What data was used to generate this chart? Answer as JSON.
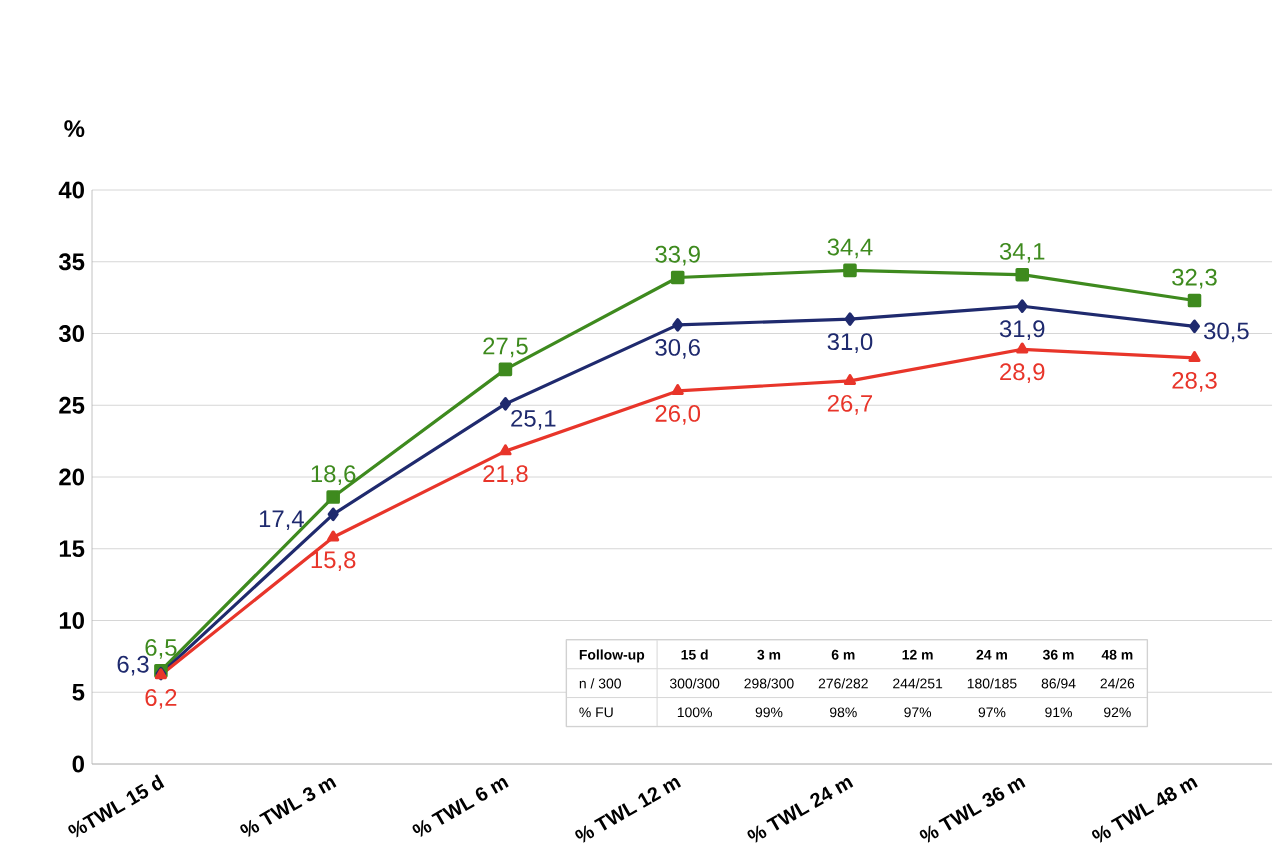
{
  "chart_data": {
    "type": "line",
    "ylabel": "%",
    "categories": [
      "%TWL 15 d",
      "% TWL 3 m",
      "% TWL 6 m",
      "% TWL 12 m",
      "% TWL 24 m",
      "% TWL 36 m",
      "% TWL 48 m"
    ],
    "series": [
      {
        "color": "#3e8a1e",
        "marker": "square",
        "values": [
          6.5,
          18.6,
          27.5,
          33.9,
          34.4,
          34.1,
          32.3
        ],
        "value_labels": [
          "6,5",
          "18,6",
          "27,5",
          "33,9",
          "34,4",
          "34,1",
          "32,3"
        ]
      },
      {
        "color": "#1f2a6e",
        "marker": "diamond",
        "values": [
          6.3,
          17.4,
          25.1,
          30.6,
          31.0,
          31.9,
          30.5
        ],
        "value_labels": [
          "6,3",
          "17,4",
          "25,1",
          "30,6",
          "31,0",
          "31,9",
          "30,5"
        ]
      },
      {
        "color": "#e8352a",
        "marker": "triangle",
        "values": [
          6.2,
          15.8,
          21.8,
          26.0,
          26.7,
          28.9,
          28.3
        ],
        "value_labels": [
          "6,2",
          "15,8",
          "21,8",
          "26,0",
          "26,7",
          "28,9",
          "28,3"
        ]
      }
    ],
    "ylim": [
      0,
      40
    ],
    "yticks": [
      0,
      5,
      10,
      15,
      20,
      25,
      30,
      35,
      40
    ],
    "grid": "y",
    "annotations": [
      "Follow-up",
      "15 d",
      "3 m",
      "6 m",
      "12 m",
      "24 m",
      "36 m",
      "48 m",
      "n / 300",
      "300/300",
      "298/300",
      "276/282",
      "244/251",
      "180/185",
      "86/94",
      "24/26",
      "% FU",
      "100%",
      "99%",
      "98%",
      "97%",
      "97%",
      "91%",
      "92%"
    ]
  }
}
